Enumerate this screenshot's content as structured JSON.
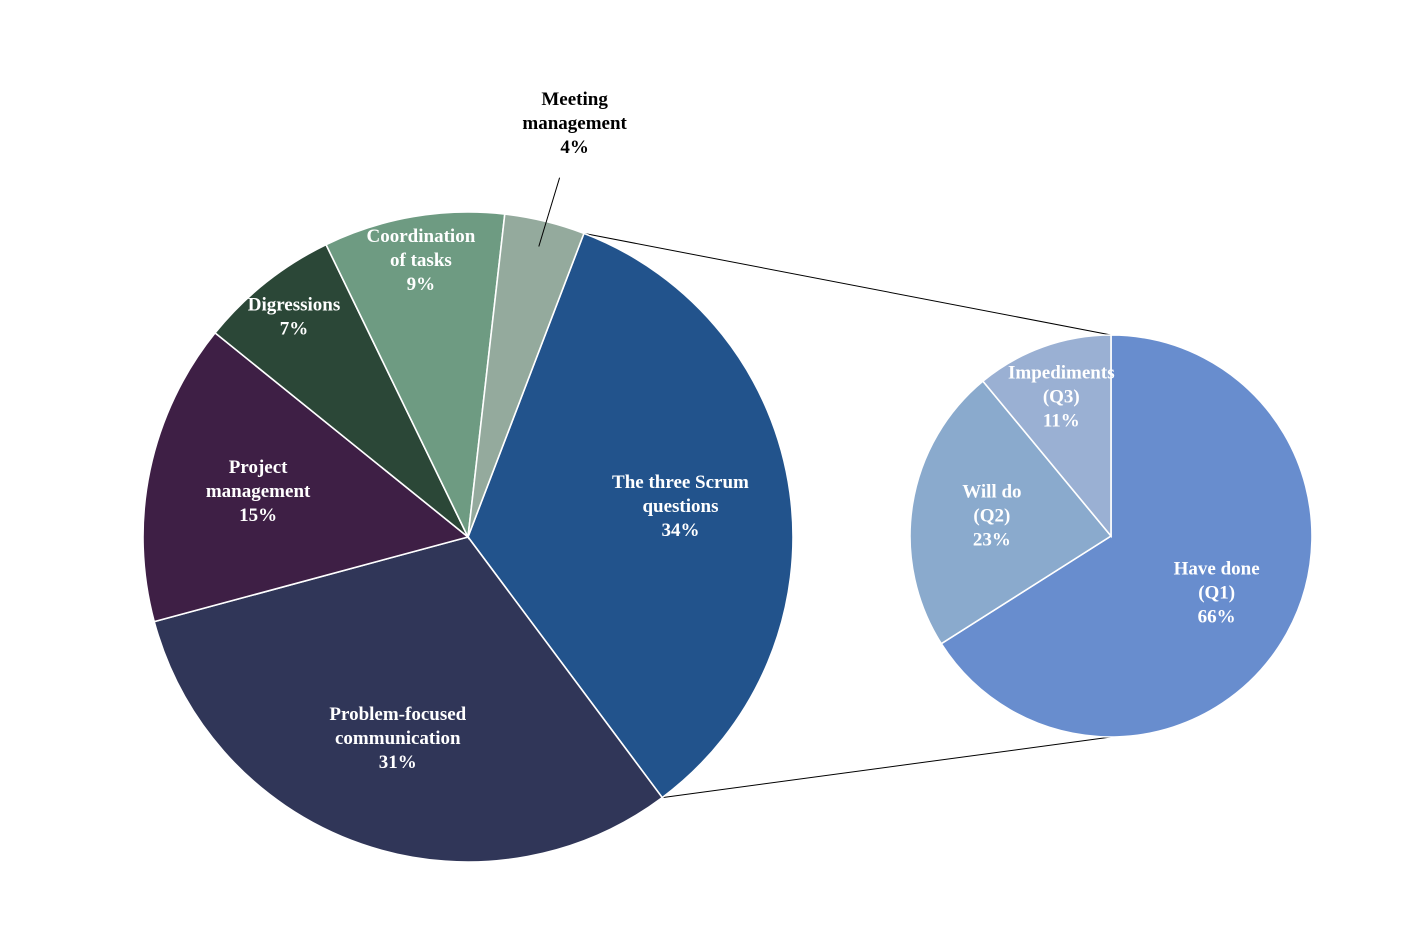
{
  "chart_data": [
    {
      "type": "pie",
      "slices": [
        {
          "label": "The three Scrum questions",
          "lines": [
            "The three Scrum",
            "questions",
            "34%"
          ],
          "value": 34,
          "color": "#22538c",
          "text_color": "#ffffff"
        },
        {
          "label": "Problem-focused communication",
          "lines": [
            "Problem-focused",
            "communication",
            "31%"
          ],
          "value": 31,
          "color": "#303658",
          "text_color": "#ffffff"
        },
        {
          "label": "Project management",
          "lines": [
            "Project",
            "management",
            "15%"
          ],
          "value": 15,
          "color": "#3e1f45",
          "text_color": "#ffffff"
        },
        {
          "label": "Digressions",
          "lines": [
            "Digressions",
            "7%"
          ],
          "value": 7,
          "color": "#2b4737",
          "text_color": "#ffffff"
        },
        {
          "label": "Coordination of tasks",
          "lines": [
            "Coordination",
            "of tasks",
            "9%"
          ],
          "value": 9,
          "color": "#6e9b82",
          "text_color": "#ffffff"
        },
        {
          "label": "Meeting management",
          "lines": [
            "Meeting",
            "management",
            "4%"
          ],
          "value": 4,
          "color": "#94aa9d",
          "text_color": "#000000",
          "label_outside": true
        }
      ]
    },
    {
      "type": "pie",
      "breakdown_of": "The three Scrum questions",
      "slices": [
        {
          "label": "Have done (Q1)",
          "lines": [
            "Have done",
            "(Q1)",
            "66%"
          ],
          "value": 66,
          "color": "#688dce",
          "text_color": "#ffffff"
        },
        {
          "label": "Will do (Q2)",
          "lines": [
            "Will do",
            "(Q2)",
            "23%"
          ],
          "value": 23,
          "color": "#8aaacd",
          "text_color": "#ffffff"
        },
        {
          "label": "Impediments (Q3)",
          "lines": [
            "Impediments",
            "(Q3)",
            "11%"
          ],
          "value": 11,
          "color": "#9ab0d3",
          "text_color": "#ffffff"
        }
      ]
    }
  ]
}
